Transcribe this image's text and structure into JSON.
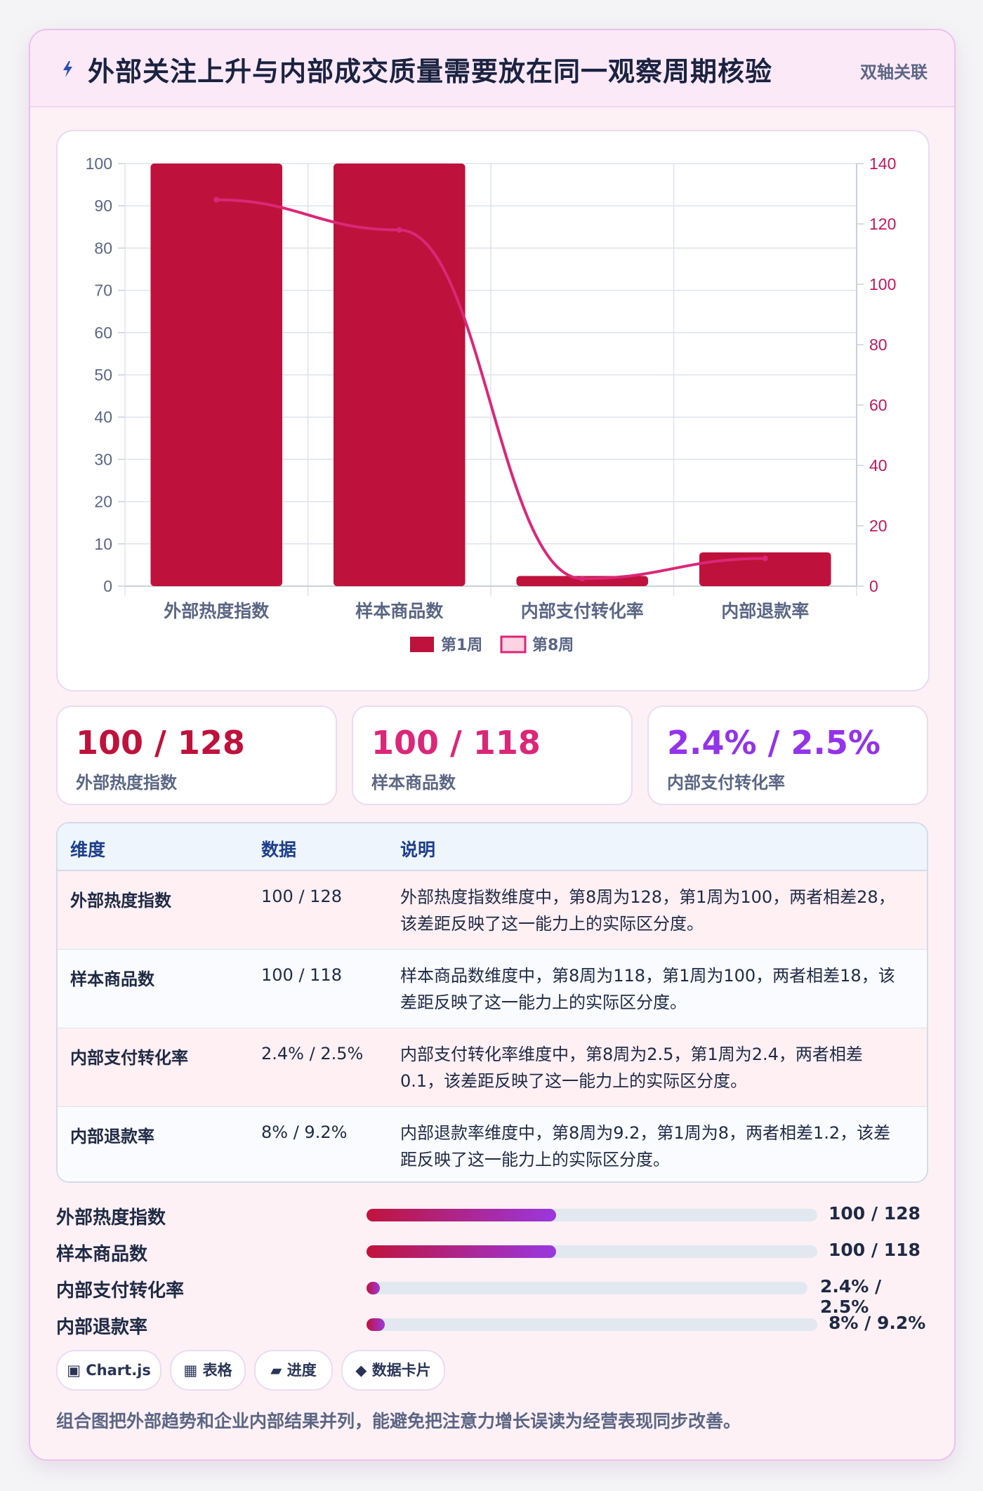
{
  "header": {
    "title": "外部关注上升与内部成交质量需要放在同一观察周期核验",
    "tag": "双轴关联",
    "icon": "lightning-icon"
  },
  "colors": {
    "bar": "#be123c",
    "line": "#db2777",
    "accent_purple": "#9333ea",
    "grid": "#dde3ec"
  },
  "chart_data": {
    "type": "bar",
    "categories": [
      "外部热度指数",
      "样本商品数",
      "内部支付转化率",
      "内部退款率"
    ],
    "series": [
      {
        "name": "第1周",
        "kind": "bar",
        "axis": "left",
        "values": [
          100,
          100,
          2.4,
          8
        ]
      },
      {
        "name": "第8周",
        "kind": "line",
        "axis": "right",
        "values": [
          128,
          118,
          2.5,
          9.2
        ]
      }
    ],
    "left_axis": {
      "min": 0,
      "max": 100,
      "ticks": [
        0,
        10,
        20,
        30,
        40,
        50,
        60,
        70,
        80,
        90,
        100
      ]
    },
    "right_axis": {
      "min": 0,
      "max": 140,
      "ticks": [
        0,
        20,
        40,
        60,
        80,
        100,
        120,
        140
      ]
    },
    "grid": true,
    "legend_position": "bottom-center"
  },
  "stats": [
    {
      "value": "100 / 128",
      "label": "外部热度指数",
      "color": "#be123c"
    },
    {
      "value": "100 / 118",
      "label": "样本商品数",
      "color": "#db2777"
    },
    {
      "value": "2.4% / 2.5%",
      "label": "内部支付转化率",
      "color": "#9333ea"
    }
  ],
  "table": {
    "headers": [
      "维度",
      "数据",
      "说明"
    ],
    "rows": [
      {
        "dim": "外部热度指数",
        "data": "100 / 128",
        "desc": "外部热度指数维度中，第8周为128，第1周为100，两者相差28，该差距反映了这一能力上的实际区分度。"
      },
      {
        "dim": "样本商品数",
        "data": "100 / 118",
        "desc": "样本商品数维度中，第8周为118，第1周为100，两者相差18，该差距反映了这一能力上的实际区分度。"
      },
      {
        "dim": "内部支付转化率",
        "data": "2.4% / 2.5%",
        "desc": "内部支付转化率维度中，第8周为2.5，第1周为2.4，两者相差0.1，该差距反映了这一能力上的实际区分度。"
      },
      {
        "dim": "内部退款率",
        "data": "8% / 9.2%",
        "desc": "内部退款率维度中，第8周为9.2，第1周为8，两者相差1.2，该差距反映了这一能力上的实际区分度。"
      }
    ]
  },
  "progress": [
    {
      "label": "外部热度指数",
      "value": "100 / 128",
      "fill": 0.42
    },
    {
      "label": "样本商品数",
      "value": "100 / 118",
      "fill": 0.42
    },
    {
      "label": "内部支付转化率",
      "value": "2.4% / 2.5%",
      "fill": 0.03
    },
    {
      "label": "内部退款率",
      "value": "8% / 9.2%",
      "fill": 0.04
    }
  ],
  "pills": [
    {
      "icon": "chart-icon",
      "glyph": "▣",
      "label": "Chart.js"
    },
    {
      "icon": "table-icon",
      "glyph": "▦",
      "label": "表格"
    },
    {
      "icon": "progress-icon",
      "glyph": "▰",
      "label": "进度"
    },
    {
      "icon": "card-icon",
      "glyph": "◆",
      "label": "数据卡片"
    }
  ],
  "footer": "组合图把外部趋势和企业内部结果并列，能避免把注意力增长误读为经营表现同步改善。"
}
